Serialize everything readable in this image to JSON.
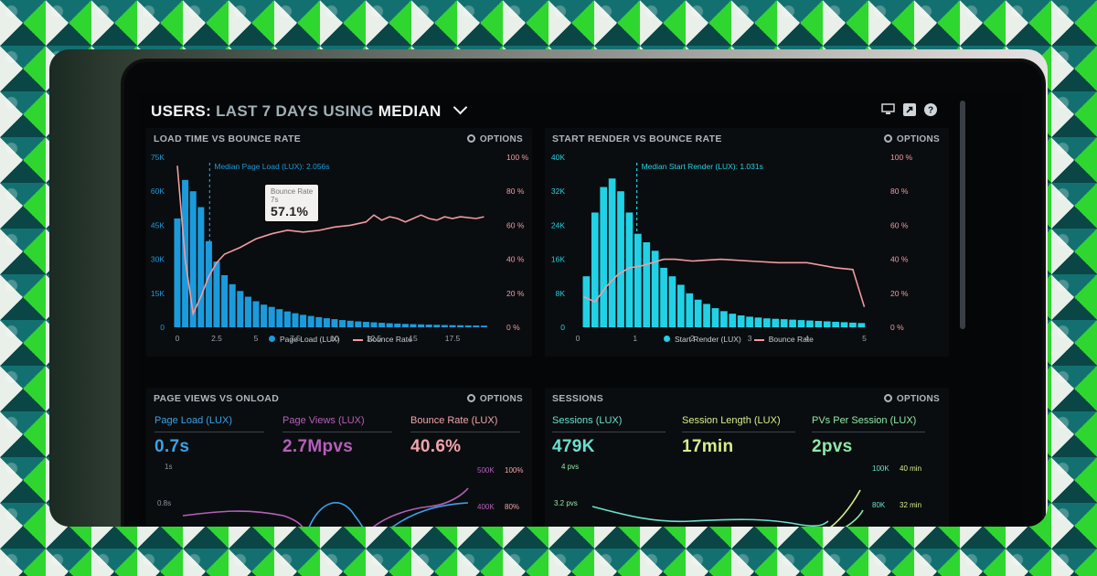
{
  "dashboard": {
    "title_prefix": "USERS:",
    "title_range": "LAST 7 DAYS",
    "title_using": "USING",
    "title_stat": "MEDIAN",
    "icons": [
      "monitor-icon",
      "share-icon",
      "help-icon"
    ]
  },
  "options_label": "OPTIONS",
  "panel_load": {
    "title": "LOAD TIME VS BOUNCE RATE",
    "annotation": "Median Page Load (LUX): 2.056s",
    "tooltip_label": "Bounce Rate",
    "tooltip_sub": "7s",
    "tooltip_value": "57.1%",
    "legend": [
      "Page Load (LUX)",
      "Bounce Rate"
    ]
  },
  "panel_render": {
    "title": "START RENDER VS BOUNCE RATE",
    "annotation": "Median Start Render (LUX): 1.031s",
    "legend": [
      "Start Render (LUX)",
      "Bounce Rate"
    ]
  },
  "panel_pageviews": {
    "title": "PAGE VIEWS VS ONLOAD",
    "metrics": [
      {
        "label": "Page Load (LUX)",
        "value": "0.7s",
        "color": "#3aa2e8"
      },
      {
        "label": "Page Views (LUX)",
        "value": "2.7Mpvs",
        "color": "#b55fbb"
      },
      {
        "label": "Bounce Rate (LUX)",
        "value": "40.6%",
        "color": "#f1a3ab"
      }
    ],
    "left_axis": [
      "1s",
      "0.8s"
    ],
    "right_axis_k": [
      "500K",
      "400K"
    ],
    "right_axis_pct": [
      "100%",
      "80%"
    ]
  },
  "panel_sessions": {
    "title": "SESSIONS",
    "metrics": [
      {
        "label": "Sessions (LUX)",
        "value": "479K",
        "color": "#6be0cf"
      },
      {
        "label": "Session Length (LUX)",
        "value": "17min",
        "color": "#d6f08a"
      },
      {
        "label": "PVs Per Session (LUX)",
        "value": "2pvs",
        "color": "#8fe8a8"
      }
    ],
    "left_axis": [
      "4 pvs",
      "3.2 pvs"
    ],
    "right_axis_k": [
      "100K",
      "80K"
    ],
    "right_axis_min": [
      "40 min",
      "32 min"
    ]
  },
  "chart_data": [
    {
      "type": "bar",
      "title": "LOAD TIME VS BOUNCE RATE",
      "x_ticks": [
        "0",
        "2.5",
        "5",
        "7.5",
        "10",
        "12.5",
        "15",
        "17.5"
      ],
      "y_left_ticks": [
        "0",
        "15K",
        "30K",
        "45K",
        "60K",
        "75K"
      ],
      "y_right_ticks": [
        "0 %",
        "20 %",
        "40 %",
        "60 %",
        "80 %",
        "100 %"
      ],
      "xlim": [
        0,
        20
      ],
      "ylim_left": [
        0,
        75000
      ],
      "ylim_right": [
        0,
        100
      ],
      "series": [
        {
          "name": "Page Load (LUX)",
          "type": "bar",
          "color": "#1c9bdc",
          "x": [
            0,
            0.5,
            1,
            1.5,
            2,
            2.5,
            3,
            3.5,
            4,
            4.5,
            5,
            5.5,
            6,
            6.5,
            7,
            7.5,
            8,
            8.5,
            9,
            9.5,
            10,
            10.5,
            11,
            11.5,
            12,
            12.5,
            13,
            13.5,
            14,
            14.5,
            15,
            15.5,
            16,
            16.5,
            17,
            17.5,
            18,
            18.5,
            19,
            19.5
          ],
          "values": [
            48000,
            65000,
            60000,
            53000,
            38000,
            29000,
            23000,
            19000,
            16000,
            13500,
            11500,
            10000,
            9000,
            8000,
            7000,
            6200,
            5500,
            5000,
            4500,
            4000,
            3600,
            3200,
            2900,
            2600,
            2400,
            2200,
            2000,
            1800,
            1650,
            1500,
            1400,
            1300,
            1200,
            1100,
            1000,
            950,
            900,
            850,
            800,
            750
          ]
        },
        {
          "name": "Bounce Rate",
          "type": "line",
          "color": "#f29aa2",
          "x": [
            0,
            0.5,
            1,
            1.5,
            2,
            2.5,
            3,
            4,
            5,
            6,
            7,
            8,
            9,
            10,
            11,
            12,
            12.5,
            13,
            13.5,
            14,
            14.5,
            15,
            15.5,
            16,
            16.5,
            17,
            17.5,
            18,
            19,
            19.5
          ],
          "values": [
            95,
            40,
            8,
            18,
            30,
            38,
            43,
            47,
            52,
            55,
            57.1,
            56,
            57,
            59,
            60,
            62,
            66,
            63,
            65,
            64,
            62,
            64,
            66,
            64,
            63,
            65,
            64,
            65,
            64,
            65
          ]
        }
      ],
      "annotation": "Median Page Load (LUX): 2.056s",
      "legend_position": "bottom"
    },
    {
      "type": "bar",
      "title": "START RENDER VS BOUNCE RATE",
      "x_ticks": [
        "0",
        "1",
        "2",
        "3",
        "4",
        "5"
      ],
      "y_left_ticks": [
        "0",
        "8K",
        "16K",
        "24K",
        "32K",
        "40K"
      ],
      "y_right_ticks": [
        "0 %",
        "20 %",
        "40 %",
        "60 %",
        "80 %",
        "100 %"
      ],
      "xlim": [
        0,
        5.2
      ],
      "ylim_left": [
        0,
        40000
      ],
      "ylim_right": [
        0,
        100
      ],
      "series": [
        {
          "name": "Start Render (LUX)",
          "type": "bar",
          "color": "#21d2e6",
          "x": [
            0.15,
            0.3,
            0.45,
            0.6,
            0.75,
            0.9,
            1.05,
            1.2,
            1.35,
            1.5,
            1.65,
            1.8,
            1.95,
            2.1,
            2.25,
            2.4,
            2.55,
            2.7,
            2.85,
            3.0,
            3.15,
            3.3,
            3.45,
            3.6,
            3.75,
            3.9,
            4.05,
            4.2,
            4.35,
            4.5,
            4.65,
            4.8,
            4.95
          ],
          "values": [
            12000,
            27000,
            33000,
            35000,
            32000,
            27000,
            22000,
            20000,
            18000,
            14000,
            12000,
            10000,
            8000,
            6500,
            5500,
            4500,
            3800,
            3200,
            2800,
            2500,
            2300,
            2100,
            2000,
            1900,
            1800,
            1700,
            1600,
            1500,
            1400,
            1300,
            1200,
            1100,
            1000
          ]
        },
        {
          "name": "Bounce Rate",
          "type": "line",
          "color": "#f29aa2",
          "x": [
            0.1,
            0.3,
            0.5,
            0.7,
            0.9,
            1.1,
            1.3,
            1.5,
            1.7,
            2.0,
            2.5,
            3.0,
            3.5,
            4.0,
            4.5,
            4.8,
            5.0
          ],
          "values": [
            18,
            15,
            24,
            31,
            35,
            36,
            38,
            40,
            40,
            39,
            40,
            39,
            38,
            38,
            35,
            34,
            12
          ]
        }
      ],
      "annotation": "Median Start Render (LUX): 1.031s",
      "legend_position": "bottom"
    }
  ]
}
